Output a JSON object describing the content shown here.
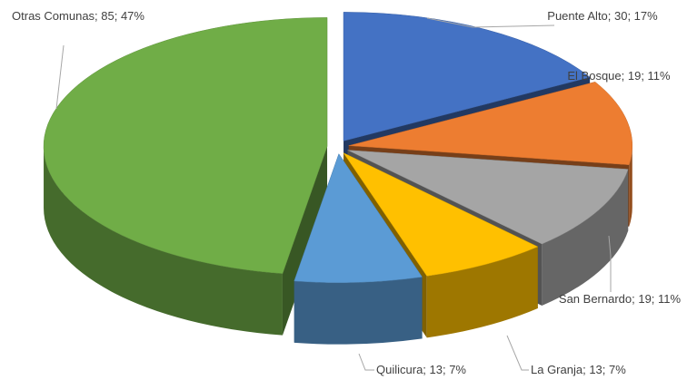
{
  "chart_data": {
    "type": "pie",
    "three_d": true,
    "categories": [
      "Puente Alto",
      "El Bosque",
      "San Bernardo",
      "La Granja",
      "Quilicura",
      "Otras Comunas"
    ],
    "values": [
      30,
      19,
      19,
      13,
      13,
      85
    ],
    "value_labels": [
      "Puente Alto; 30; 17%",
      "El Bosque; 19; 11%",
      "San Bernardo; 19; 11%",
      "La Granja; 13; 7%",
      "Quilicura; 13; 7%",
      "Otras Comunas; 85; 47%"
    ],
    "colors": [
      "#4472c4",
      "#ed7d31",
      "#a5a5a5",
      "#ffc000",
      "#5b9bd5",
      "#70ad47"
    ]
  }
}
